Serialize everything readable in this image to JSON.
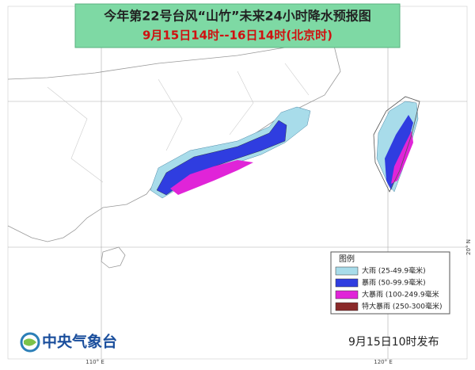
{
  "header": {
    "title": "今年第22号台风“山竹”未来24小时降水预报图",
    "subtitle": "9月15日14时--16日14时(北京时)"
  },
  "legend": {
    "title": "图例",
    "items": [
      {
        "label": "大雨 (25-49.9毫米)",
        "color": "#a8dcea"
      },
      {
        "label": "暴雨 (50-99.9毫米)",
        "color": "#2f3de0"
      },
      {
        "label": "大暴雨 (100-249.9毫米",
        "color": "#e024d8"
      },
      {
        "label": "特大暴雨 (250-300毫米)",
        "color": "#8a2a2a"
      }
    ]
  },
  "axis_labels": {
    "lon": [
      "110° E",
      "120° E"
    ],
    "lat": [
      "20° N"
    ]
  },
  "footer": {
    "org": "中央气象台",
    "issued": "9月15日10时发布"
  }
}
